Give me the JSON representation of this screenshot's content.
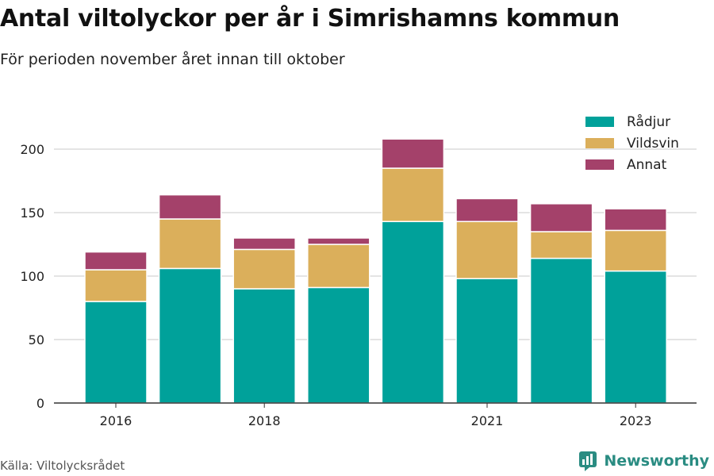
{
  "chart_data": {
    "type": "bar",
    "stacked": true,
    "title": "Antal viltolyckor per år i Simrishamns kommun",
    "subtitle": "För perioden november året innan till oktober",
    "categories": [
      "2016",
      "2017",
      "2018",
      "2019",
      "2020",
      "2021",
      "2022",
      "2023"
    ],
    "x_tick_labels": [
      "2016",
      "",
      "2018",
      "",
      "",
      "2021",
      "",
      "2023"
    ],
    "series": [
      {
        "name": "Rådjur",
        "color": "#00a19a",
        "values": [
          80,
          106,
          90,
          91,
          143,
          98,
          114,
          104
        ]
      },
      {
        "name": "Vildsvin",
        "color": "#dbaf5b",
        "values": [
          25,
          39,
          31,
          34,
          42,
          45,
          21,
          32
        ]
      },
      {
        "name": "Annat",
        "color": "#a4416a",
        "values": [
          14,
          19,
          9,
          5,
          23,
          18,
          22,
          17
        ]
      }
    ],
    "ylim": [
      0,
      230
    ],
    "yticks": [
      0,
      50,
      100,
      150,
      200
    ],
    "grid": true,
    "legend_position": "top-right"
  },
  "footer": {
    "source": "Källa: Viltolycksrådet",
    "brand": "Newsworthy"
  },
  "icons": {
    "brand_logo": "newsworthy-logo-icon"
  },
  "colors": {
    "brand": "#2a8c82",
    "grid": "#dcdcdc",
    "axis": "#333333"
  }
}
